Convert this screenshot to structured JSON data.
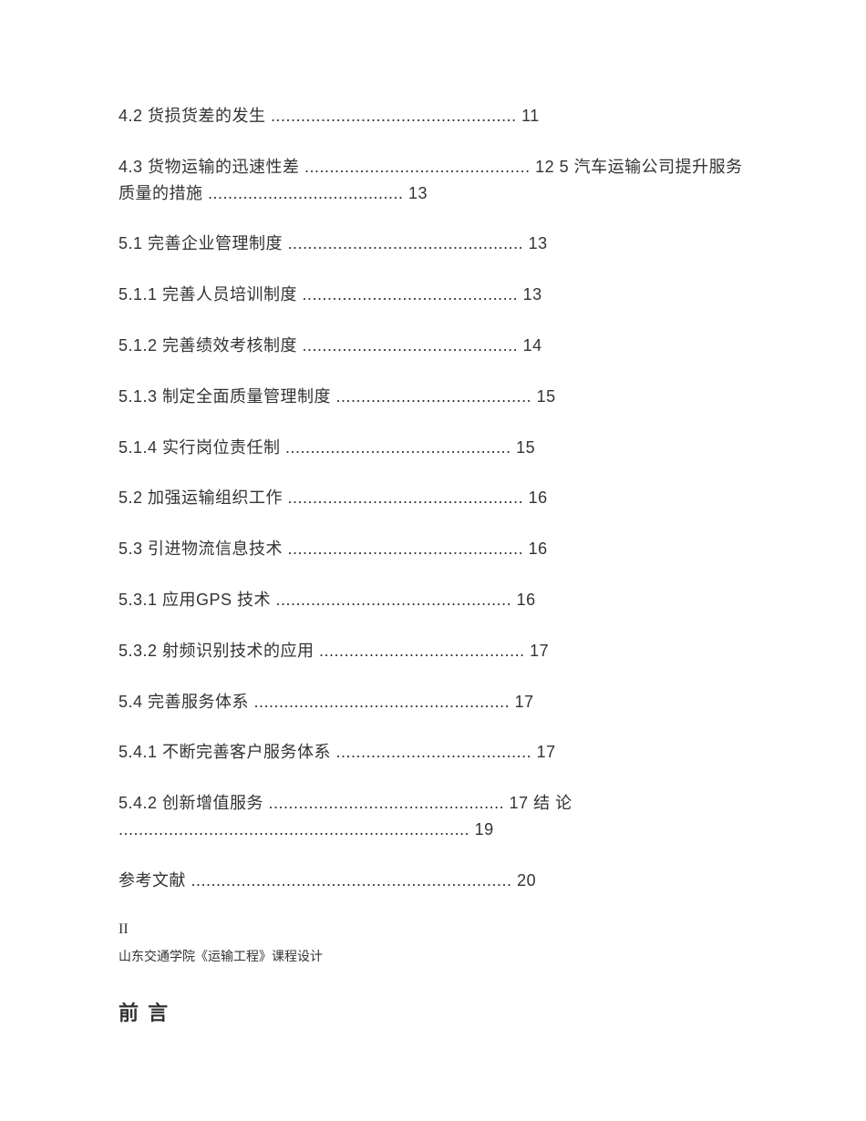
{
  "toc": {
    "entry1": "4.2 货损货差的发生 ................................................. 11",
    "entry2": "4.3 货物运输的迅速性差 ............................................. 12 5 汽车运输公司提升服务质量的措施 ....................................... 13",
    "entry3": "5.1 完善企业管理制度 ............................................... 13",
    "entry4": "5.1.1 完善人员培训制度 ........................................... 13",
    "entry5": "5.1.2 完善绩效考核制度 ........................................... 14",
    "entry6": "5.1.3 制定全面质量管理制度 ....................................... 15",
    "entry7": "5.1.4 实行岗位责任制 ............................................. 15",
    "entry8": "5.2 加强运输组织工作 ............................................... 16",
    "entry9": "5.3 引进物流信息技术 ............................................... 16",
    "entry10": "5.3.1 应用GPS 技术 ............................................... 16",
    "entry11": "5.3.2 射频识别技术的应用 ......................................... 17",
    "entry12": "5.4 完善服务体系 ................................................... 17",
    "entry13": "5.4.1 不断完善客户服务体系 ....................................... 17",
    "entry14": "5.4.2 创新增值服务 ............................................... 17 结 论 ...................................................................... 19",
    "entry15": "参考文献 ................................................................ 20"
  },
  "pageNumber": "II",
  "footerText": "山东交通学院《运输工程》课程设计",
  "heading": "前 言"
}
